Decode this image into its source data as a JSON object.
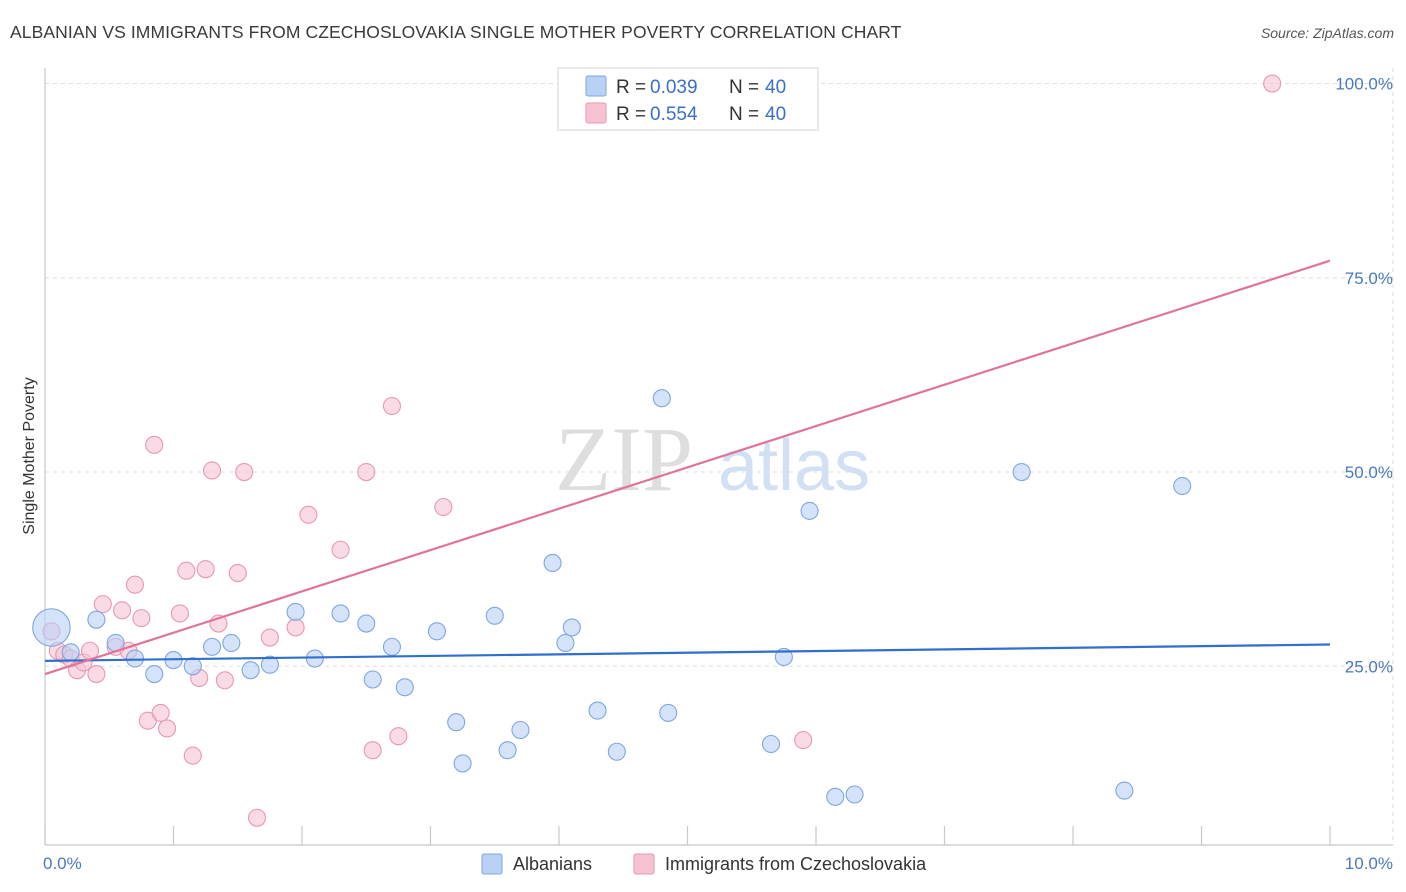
{
  "header": {
    "title": "ALBANIAN VS IMMIGRANTS FROM CZECHOSLOVAKIA SINGLE MOTHER POVERTY CORRELATION CHART",
    "source": "Source: ZipAtlas.com"
  },
  "watermark": {
    "zip": "ZIP",
    "atlas": "atlas"
  },
  "colors": {
    "albanians_fill": "#b8d1f5",
    "albanians_stroke": "#7fa6df",
    "albanians_line": "#2f6fce",
    "czech_fill": "#f7c3d3",
    "czech_stroke": "#e898b2",
    "czech_line": "#e0739a",
    "grid": "#dddddd",
    "tick_text": "#4a78c2"
  },
  "legend": {
    "r_label": "R =",
    "n_label": "N =",
    "items": [
      {
        "series": "Albanians",
        "r": "0.039",
        "n": "40"
      },
      {
        "series": "Immigrants from Czechoslovakia",
        "r": "0.554",
        "n": "40"
      }
    ]
  },
  "chart_data": {
    "type": "scatter",
    "title": "ALBANIAN VS IMMIGRANTS FROM CZECHOSLOVAKIA SINGLE MOTHER POVERTY CORRELATION CHART",
    "xlabel": "",
    "ylabel": "Single Mother Poverty",
    "xlim": [
      0,
      10
    ],
    "ylim": [
      2,
      102
    ],
    "x_tick_labels": [
      {
        "value": 0,
        "label": "0.0%"
      },
      {
        "value": 10,
        "label": "10.0%"
      }
    ],
    "y_tick_labels": [
      {
        "value": 25,
        "label": "25.0%"
      },
      {
        "value": 50,
        "label": "50.0%"
      },
      {
        "value": 75,
        "label": "75.0%"
      },
      {
        "value": 100,
        "label": "100.0%"
      }
    ],
    "grid_y": [
      25,
      50,
      75,
      100
    ],
    "series": [
      {
        "name": "Albanians",
        "r": 0.039,
        "n": 40,
        "trend": {
          "x": [
            0,
            10
          ],
          "y": [
            25.7,
            27.8
          ]
        },
        "points": [
          [
            0.05,
            30,
            2.2
          ],
          [
            0.2,
            26.8,
            1
          ],
          [
            0.4,
            31,
            1
          ],
          [
            0.55,
            28,
            1
          ],
          [
            0.7,
            26,
            1
          ],
          [
            0.85,
            24,
            1
          ],
          [
            1.0,
            25.8,
            1
          ],
          [
            1.15,
            25,
            1
          ],
          [
            1.3,
            27.5,
            1
          ],
          [
            1.45,
            28,
            1
          ],
          [
            1.6,
            24.5,
            1
          ],
          [
            1.75,
            25.2,
            1
          ],
          [
            1.95,
            32,
            1
          ],
          [
            2.1,
            26,
            1
          ],
          [
            2.3,
            31.8,
            1
          ],
          [
            2.5,
            30.5,
            1
          ],
          [
            2.55,
            23.3,
            1
          ],
          [
            2.7,
            27.5,
            1
          ],
          [
            2.8,
            22.3,
            1
          ],
          [
            3.05,
            29.5,
            1
          ],
          [
            3.2,
            17.8,
            1
          ],
          [
            3.25,
            12.5,
            1
          ],
          [
            3.5,
            31.5,
            1
          ],
          [
            3.6,
            14.2,
            1
          ],
          [
            3.7,
            16.8,
            1
          ],
          [
            3.95,
            38.3,
            1
          ],
          [
            4.05,
            28,
            1
          ],
          [
            4.1,
            30,
            1
          ],
          [
            4.3,
            19.3,
            1
          ],
          [
            4.45,
            14,
            1
          ],
          [
            4.8,
            59.5,
            1
          ],
          [
            4.85,
            19,
            1
          ],
          [
            5.65,
            15,
            1
          ],
          [
            5.75,
            26.2,
            1
          ],
          [
            5.95,
            45,
            1
          ],
          [
            6.15,
            8.2,
            1
          ],
          [
            6.3,
            8.5,
            1
          ],
          [
            7.6,
            50,
            1
          ],
          [
            8.4,
            9,
            1
          ],
          [
            8.85,
            48.2,
            1
          ]
        ]
      },
      {
        "name": "Immigrants from Czechoslovakia",
        "r": 0.554,
        "n": 40,
        "trend": {
          "x": [
            0,
            10
          ],
          "y": [
            24,
            77.2
          ]
        },
        "points": [
          [
            0.1,
            27,
            1
          ],
          [
            0.15,
            26.5,
            1
          ],
          [
            0.2,
            26,
            1
          ],
          [
            0.25,
            24.5,
            1
          ],
          [
            0.3,
            25.5,
            1
          ],
          [
            0.35,
            27,
            1
          ],
          [
            0.4,
            24,
            1
          ],
          [
            0.45,
            33,
            1
          ],
          [
            0.55,
            27.5,
            1
          ],
          [
            0.6,
            32.2,
            1
          ],
          [
            0.65,
            27,
            1
          ],
          [
            0.7,
            35.5,
            1
          ],
          [
            0.75,
            31.2,
            1
          ],
          [
            0.8,
            18,
            1
          ],
          [
            0.85,
            53.5,
            1
          ],
          [
            0.9,
            19,
            1
          ],
          [
            0.95,
            17,
            1
          ],
          [
            1.05,
            31.8,
            1
          ],
          [
            1.1,
            37.3,
            1
          ],
          [
            1.15,
            13.5,
            1
          ],
          [
            1.2,
            23.5,
            1
          ],
          [
            1.25,
            37.5,
            1
          ],
          [
            1.3,
            50.2,
            1
          ],
          [
            1.35,
            30.5,
            1
          ],
          [
            1.4,
            23.2,
            1
          ],
          [
            1.5,
            37,
            1
          ],
          [
            1.55,
            50,
            1
          ],
          [
            1.65,
            5.5,
            1
          ],
          [
            1.75,
            28.7,
            1
          ],
          [
            1.95,
            30,
            1
          ],
          [
            2.05,
            44.5,
            1
          ],
          [
            2.3,
            40,
            1
          ],
          [
            2.5,
            50,
            1
          ],
          [
            2.55,
            14.2,
            1
          ],
          [
            2.7,
            58.5,
            1
          ],
          [
            2.75,
            16,
            1
          ],
          [
            3.1,
            45.5,
            1
          ],
          [
            5.9,
            15.5,
            1
          ],
          [
            9.55,
            100,
            1
          ],
          [
            0.05,
            29.5,
            1
          ]
        ]
      }
    ]
  }
}
